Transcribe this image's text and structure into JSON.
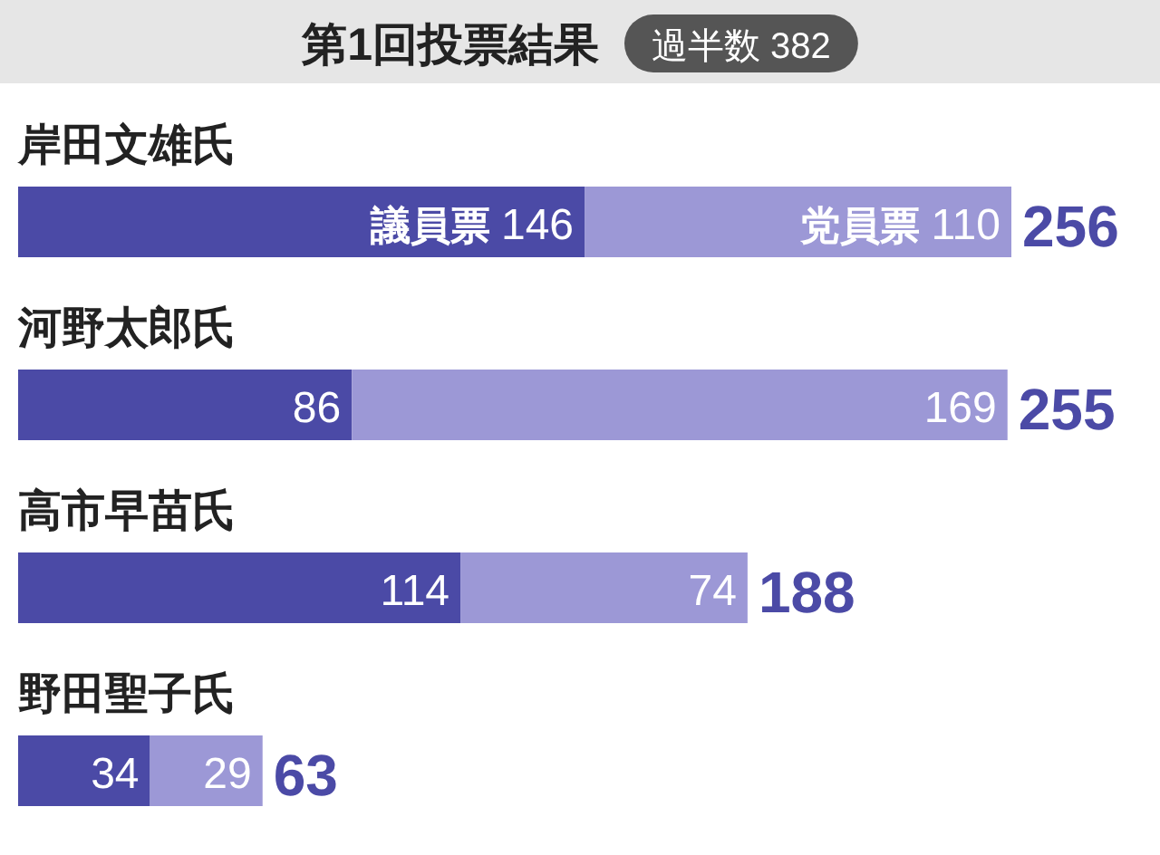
{
  "chart_data": {
    "type": "bar",
    "orientation": "horizontal",
    "stacked": true,
    "title": "第1回投票結果",
    "subtitle": "過半数 382",
    "categories": [
      "岸田文雄氏",
      "河野太郎氏",
      "高市早苗氏",
      "野田聖子氏"
    ],
    "series": [
      {
        "name": "議員票",
        "color": "#4b4aa6",
        "values": [
          146,
          86,
          114,
          34
        ]
      },
      {
        "name": "党員票",
        "color": "#9c98d6",
        "values": [
          110,
          169,
          74,
          29
        ]
      }
    ],
    "data_labels": true,
    "totals": [
      "256",
      "255",
      "188",
      "63"
    ],
    "legend": false
  }
}
